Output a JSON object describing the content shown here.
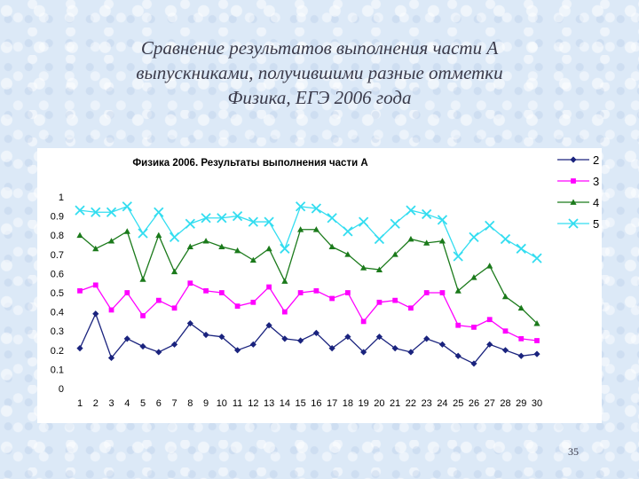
{
  "slide": {
    "title_lines": [
      "Сравнение результатов выполнения части А",
      "выпускниками, получившими разные отметки",
      "Физика, ЕГЭ 2006 года"
    ],
    "page_number": "35"
  },
  "chart_data": {
    "type": "line",
    "title": "Физика 2006. Результаты выполнения части А",
    "xlabel": "",
    "ylabel": "",
    "x": [
      1,
      2,
      3,
      4,
      5,
      6,
      7,
      8,
      9,
      10,
      11,
      12,
      13,
      14,
      15,
      16,
      17,
      18,
      19,
      20,
      21,
      22,
      23,
      24,
      25,
      26,
      27,
      28,
      29,
      30
    ],
    "x_labels": [
      "1",
      "2",
      "3",
      "4",
      "5",
      "6",
      "7",
      "8",
      "9",
      "10",
      "11",
      "12",
      "13",
      "14",
      "15",
      "16",
      "17",
      "18",
      "19",
      "20",
      "21",
      "22",
      "23",
      "24",
      "25",
      "26",
      "27",
      "28",
      "29",
      "30"
    ],
    "ylim": [
      0,
      1
    ],
    "y_ticks": [
      "0",
      "0.1",
      "0.2",
      "0.3",
      "0.4",
      "0.5",
      "0.6",
      "0.7",
      "0.8",
      "0.9",
      "1"
    ],
    "grid": false,
    "legend_position": "right",
    "series": [
      {
        "name": "2",
        "color": "#1a237e",
        "marker": "diamond",
        "values": [
          0.21,
          0.39,
          0.16,
          0.26,
          0.22,
          0.19,
          0.23,
          0.34,
          0.28,
          0.27,
          0.2,
          0.23,
          0.33,
          0.26,
          0.25,
          0.29,
          0.21,
          0.27,
          0.19,
          0.27,
          0.21,
          0.19,
          0.26,
          0.23,
          0.17,
          0.13,
          0.23,
          0.2,
          0.17,
          0.18
        ]
      },
      {
        "name": "3",
        "color": "#ff00ff",
        "marker": "square",
        "values": [
          0.51,
          0.54,
          0.41,
          0.5,
          0.38,
          0.46,
          0.42,
          0.55,
          0.51,
          0.5,
          0.43,
          0.45,
          0.53,
          0.4,
          0.5,
          0.51,
          0.47,
          0.5,
          0.35,
          0.45,
          0.46,
          0.42,
          0.5,
          0.5,
          0.33,
          0.32,
          0.36,
          0.3,
          0.26,
          0.25
        ]
      },
      {
        "name": "4",
        "color": "#1b7a1b",
        "marker": "triangle",
        "values": [
          0.8,
          0.73,
          0.77,
          0.82,
          0.57,
          0.8,
          0.61,
          0.74,
          0.77,
          0.74,
          0.72,
          0.67,
          0.73,
          0.56,
          0.83,
          0.83,
          0.74,
          0.7,
          0.63,
          0.62,
          0.7,
          0.78,
          0.76,
          0.77,
          0.51,
          0.58,
          0.64,
          0.48,
          0.42,
          0.34
        ]
      },
      {
        "name": "5",
        "color": "#33ddf0",
        "marker": "x",
        "values": [
          0.93,
          0.92,
          0.92,
          0.95,
          0.81,
          0.92,
          0.79,
          0.86,
          0.89,
          0.89,
          0.9,
          0.87,
          0.87,
          0.73,
          0.95,
          0.94,
          0.89,
          0.82,
          0.87,
          0.78,
          0.86,
          0.93,
          0.91,
          0.88,
          0.69,
          0.79,
          0.85,
          0.78,
          0.73,
          0.68
        ]
      }
    ]
  }
}
